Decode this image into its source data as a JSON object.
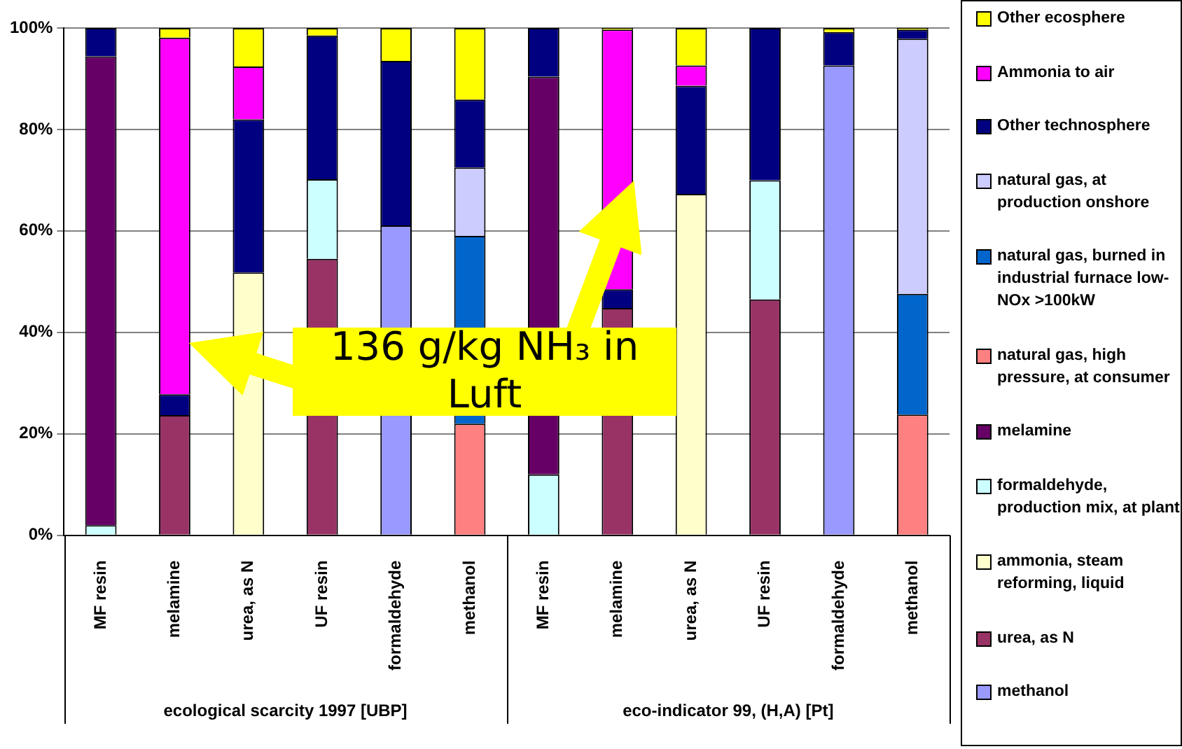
{
  "chart_data": {
    "type": "bar",
    "stacked": true,
    "categories": [
      "MF resin",
      "melamine",
      "urea, as N",
      "UF resin",
      "formaldehyde",
      "methanol",
      "MF resin",
      "melamine",
      "urea, as N",
      "UF resin",
      "formaldehyde",
      "methanol"
    ],
    "series": [
      {
        "name": "methanol",
        "color": "#9999ff",
        "values": [
          null,
          null,
          null,
          null,
          61.1,
          null,
          null,
          null,
          null,
          null,
          92.6,
          null
        ]
      },
      {
        "name": "urea, as N",
        "color": "#993366",
        "values": [
          null,
          23.7,
          null,
          54.5,
          null,
          null,
          null,
          44.8,
          null,
          46.5,
          null,
          null
        ]
      },
      {
        "name": "ammonia, steam reforming, liquid",
        "color": "#ffffcc",
        "values": [
          null,
          null,
          51.8,
          null,
          null,
          null,
          null,
          null,
          67.3,
          null,
          null,
          null
        ]
      },
      {
        "name": "formaldehyde, production mix, at plant",
        "color": "#ccffff",
        "values": [
          2,
          null,
          null,
          15.7,
          null,
          null,
          12,
          null,
          null,
          23.5,
          null,
          null
        ]
      },
      {
        "name": "melamine",
        "color": "#660066",
        "values": [
          92.4,
          null,
          null,
          null,
          null,
          null,
          78.4,
          null,
          null,
          null,
          null,
          null
        ]
      },
      {
        "name": "natural gas, high pressure, at consumer",
        "color": "#ff8080",
        "values": [
          null,
          null,
          null,
          null,
          null,
          22,
          null,
          null,
          null,
          null,
          null,
          23.8
        ]
      },
      {
        "name": "natural gas, burned in industrial furnace low-NOx >100kW",
        "color": "#0066cc",
        "values": [
          null,
          null,
          null,
          null,
          null,
          37,
          null,
          null,
          null,
          null,
          null,
          23.8
        ]
      },
      {
        "name": "natural gas, at production onshore",
        "color": "#ccccff",
        "values": [
          null,
          null,
          null,
          null,
          null,
          13.5,
          null,
          null,
          null,
          null,
          null,
          50.3
        ]
      },
      {
        "name": "Other technosphere",
        "color": "#000080",
        "values": [
          5.6,
          4.1,
          30.2,
          28.3,
          32.4,
          13.4,
          9.6,
          3.7,
          21.3,
          30,
          6.6,
          1.8
        ]
      },
      {
        "name": "Ammonia to air",
        "color": "#ff00ff",
        "values": [
          null,
          70.3,
          10.4,
          null,
          null,
          null,
          null,
          51.2,
          4,
          null,
          null,
          null
        ]
      },
      {
        "name": "Other ecosphere",
        "color": "#ffff00",
        "values": [
          null,
          1.9,
          7.6,
          1.5,
          6.5,
          14.1,
          null,
          0.3,
          7.4,
          null,
          0.8,
          0.3
        ]
      }
    ],
    "ylim": [
      0,
      100
    ],
    "yticks": [
      {
        "value": 0,
        "label": "0%"
      },
      {
        "value": 20,
        "label": "20%"
      },
      {
        "value": 40,
        "label": "40%"
      },
      {
        "value": 60,
        "label": "60%"
      },
      {
        "value": 80,
        "label": "80%"
      },
      {
        "value": 100,
        "label": "100%"
      }
    ],
    "grid": "y",
    "legend": "right",
    "annotations": [
      "ecological scarcity 1997 [UBP]",
      "eco-indicator 99, (H,A) [Pt]",
      "136 g/kg NH₃ in Luft"
    ]
  }
}
